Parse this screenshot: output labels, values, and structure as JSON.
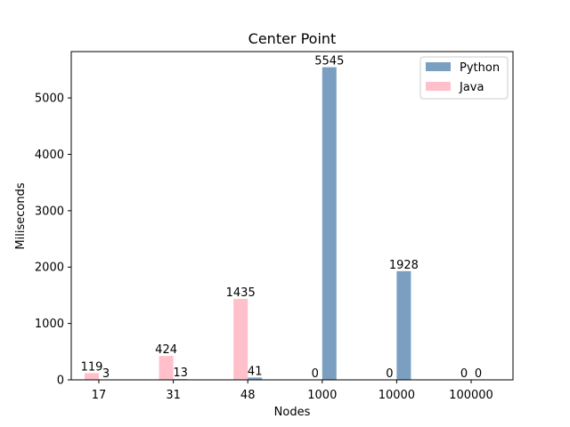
{
  "chart_data": {
    "type": "bar",
    "title": "Center Point",
    "xlabel": "Nodes",
    "ylabel": "Miliseconds",
    "categories": [
      "17",
      "31",
      "48",
      "1000",
      "10000",
      "100000"
    ],
    "series": [
      {
        "name": "Python",
        "color": "#7b9fc0",
        "values": [
          3,
          13,
          41,
          5545,
          1928,
          0
        ]
      },
      {
        "name": "Java",
        "color": "#ffc0cb",
        "values": [
          119,
          424,
          1435,
          0,
          0,
          0
        ]
      }
    ],
    "ylim": [
      0,
      5822
    ],
    "yticks": [
      0,
      1000,
      2000,
      3000,
      4000,
      5000
    ],
    "grid": false,
    "legend": "top-right"
  }
}
